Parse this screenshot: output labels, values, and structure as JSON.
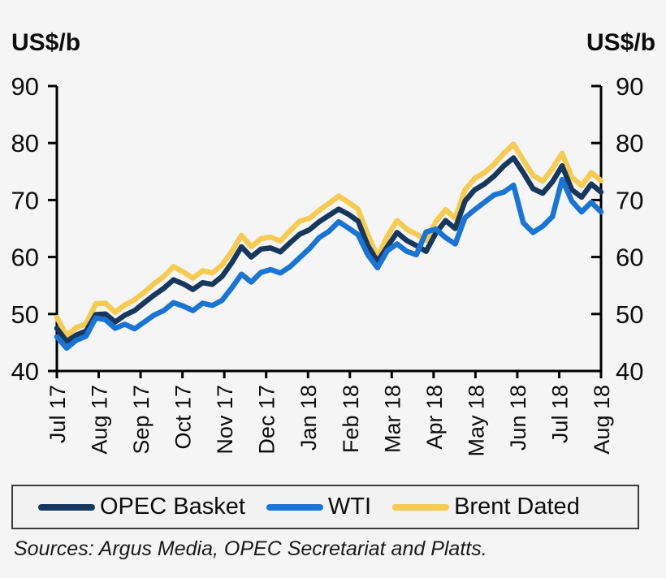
{
  "units": {
    "left": "US$/b",
    "right": "US$/b"
  },
  "source_note": "Sources: Argus Media, OPEC Secretariat and Platts.",
  "legend": {
    "items": [
      {
        "label": "OPEC Basket",
        "color": "#17375D"
      },
      {
        "label": "WTI",
        "color": "#1A74D2"
      },
      {
        "label": "Brent Dated",
        "color": "#F5CB53"
      }
    ]
  },
  "chart_data": {
    "type": "line",
    "title": "",
    "xlabel": "",
    "ylabel_left": "US$/b",
    "ylabel_right": "US$/b",
    "ylim": [
      40,
      90
    ],
    "y_ticks": [
      90,
      80,
      70,
      60,
      50,
      40
    ],
    "x_tick_labels": [
      "Jul 17",
      "Aug 17",
      "Sep 17",
      "Oct 17",
      "Nov 17",
      "Dec 17",
      "Jan 18",
      "Feb 18",
      "Mar 18",
      "Apr 18",
      "May 18",
      "Jun 18",
      "Jul 18",
      "Aug 18"
    ],
    "grid": false,
    "legend_position": "bottom",
    "axis_color": "#000000",
    "series": [
      {
        "name": "Brent Dated",
        "color": "#F5CB53",
        "values": [
          49.4,
          46.2,
          47.6,
          48.3,
          51.8,
          51.9,
          50.3,
          51.6,
          52.5,
          53.8,
          55.3,
          56.6,
          58.3,
          57.4,
          56.3,
          57.6,
          57.2,
          58.6,
          61.0,
          63.8,
          61.8,
          63.2,
          63.5,
          62.8,
          64.6,
          66.3,
          66.8,
          68.2,
          69.4,
          70.7,
          69.6,
          68.4,
          63.9,
          60.0,
          63.6,
          66.4,
          64.9,
          64.0,
          62.9,
          66.2,
          68.3,
          66.8,
          71.8,
          73.8,
          74.8,
          76.3,
          78.2,
          79.8,
          77.0,
          74.3,
          73.3,
          75.5,
          78.2,
          74.0,
          72.5,
          74.8,
          73.4
        ]
      },
      {
        "name": "OPEC Basket",
        "color": "#17375D",
        "values": [
          47.5,
          45.2,
          46.3,
          47.0,
          49.9,
          50.0,
          48.6,
          49.8,
          50.6,
          52.0,
          53.3,
          54.5,
          56.0,
          55.3,
          54.3,
          55.5,
          55.2,
          56.6,
          59.0,
          61.8,
          60.0,
          61.4,
          61.6,
          60.9,
          62.5,
          64.0,
          64.8,
          66.2,
          67.3,
          68.4,
          67.5,
          66.3,
          62.0,
          59.2,
          61.8,
          64.3,
          62.9,
          62.0,
          61.0,
          64.2,
          66.4,
          65.0,
          69.8,
          71.8,
          72.8,
          74.2,
          76.0,
          77.4,
          74.8,
          72.0,
          71.2,
          73.2,
          76.0,
          71.8,
          70.5,
          72.8,
          71.4
        ]
      },
      {
        "name": "WTI",
        "color": "#1A74D2",
        "values": [
          46.0,
          44.0,
          45.4,
          46.1,
          49.3,
          49.0,
          47.5,
          48.2,
          47.4,
          48.6,
          49.8,
          50.6,
          52.0,
          51.4,
          50.6,
          51.9,
          51.5,
          52.4,
          54.6,
          57.0,
          55.6,
          57.3,
          57.8,
          57.2,
          58.3,
          59.9,
          61.5,
          63.4,
          64.5,
          66.2,
          65.1,
          63.9,
          60.4,
          58.1,
          61.1,
          62.3,
          61.0,
          60.4,
          64.4,
          64.9,
          63.4,
          62.3,
          66.9,
          68.3,
          69.6,
          70.9,
          71.4,
          72.6,
          66.0,
          64.3,
          65.4,
          67.1,
          73.6,
          69.8,
          67.9,
          69.6,
          67.9
        ]
      }
    ]
  }
}
